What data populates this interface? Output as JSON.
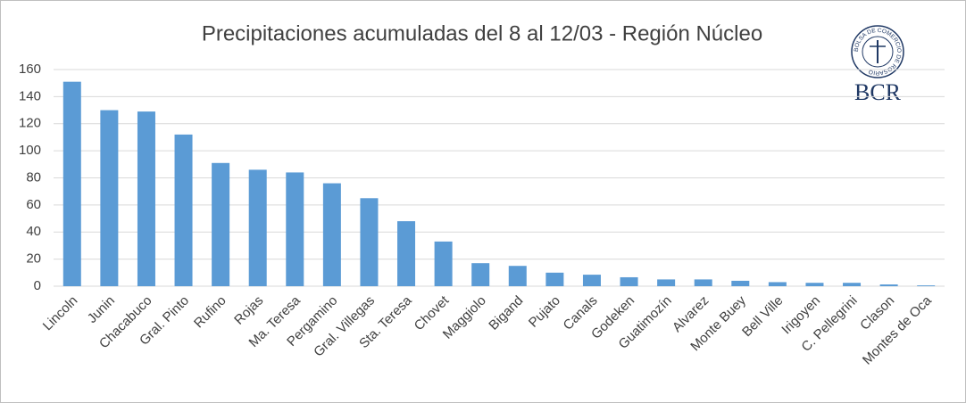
{
  "chart_data": {
    "type": "bar",
    "title": "Precipitaciones acumuladas del 8 al 12/03 - Región Núcleo",
    "logo": {
      "text": "BCR",
      "seal_text": "BOLSA DE COMERCIO DE ROSARIO"
    },
    "categories": [
      "Lincoln",
      "Junin",
      "Chacabuco",
      "Gral. Pinto",
      "Rufino",
      "Rojas",
      "Ma. Teresa",
      "Pergamino",
      "Gral. Villegas",
      "Sta. Teresa",
      "Chovet",
      "Maggiolo",
      "Bigand",
      "Pujato",
      "Canals",
      "Godeken",
      "Guatimozín",
      "Alvarez",
      "Monte Buey",
      "Bell Ville",
      "Irigoyen",
      "C. Pellegrini",
      "Clason",
      "Montes de Oca"
    ],
    "values": [
      151,
      130,
      129,
      112,
      91,
      86,
      84,
      76,
      65,
      48,
      33,
      17,
      15,
      10,
      8.5,
      6.6,
      5,
      5,
      4,
      3,
      2.5,
      2.5,
      1.3,
      0.6
    ],
    "color": "#5b9bd5",
    "ylim": [
      0,
      160
    ],
    "yticks": [
      0,
      20,
      40,
      60,
      80,
      100,
      120,
      140,
      160
    ],
    "grid": true
  }
}
